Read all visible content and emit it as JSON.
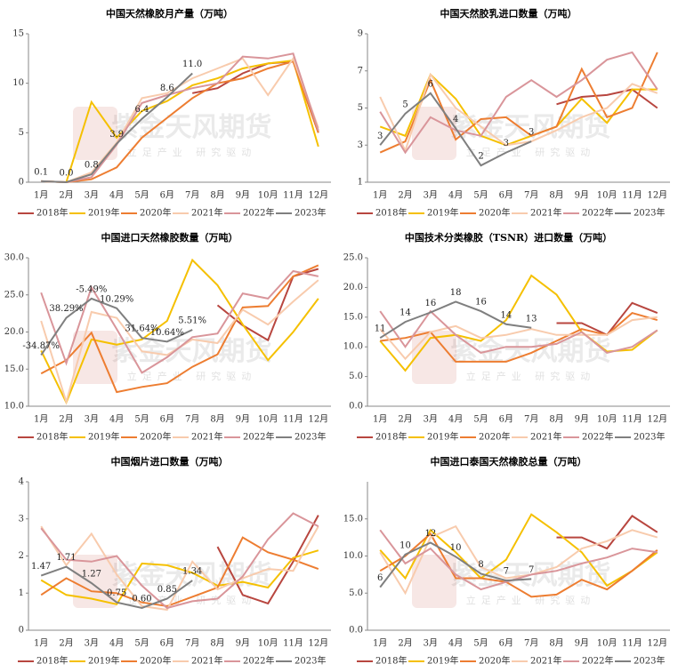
{
  "watermark": {
    "title": "紫金天风期货",
    "subtitle": "立足产业 研究驱动"
  },
  "chart_data": [
    {
      "type": "line",
      "title": "中国天然橡胶月产量（万吨）",
      "categories": [
        "1月",
        "2月",
        "3月",
        "4月",
        "5月",
        "6月",
        "7月",
        "8月",
        "9月",
        "10月",
        "11月",
        "12月"
      ],
      "ylim": [
        0,
        15
      ],
      "yticks": [
        0,
        5,
        10,
        15
      ],
      "series": [
        {
          "name": "2018年",
          "color": "#b8463f",
          "values": [
            null,
            null,
            null,
            null,
            null,
            null,
            9.0,
            9.5,
            11.0,
            12.0,
            12.2,
            5.0
          ]
        },
        {
          "name": "2019年",
          "color": "#f5c000",
          "values": [
            0.1,
            0.0,
            8.1,
            4.5,
            7.2,
            8.2,
            9.8,
            10.5,
            11.5,
            12.0,
            12.3,
            3.6
          ]
        },
        {
          "name": "2020年",
          "color": "#ed7d31",
          "values": [
            0.1,
            0.0,
            0.3,
            1.5,
            4.5,
            6.5,
            8.5,
            10.0,
            10.5,
            11.5,
            12.2,
            5.0
          ]
        },
        {
          "name": "2021年",
          "color": "#f8cbad",
          "values": [
            0.1,
            0.0,
            1.0,
            4.0,
            8.5,
            9.0,
            10.5,
            11.5,
            12.5,
            8.8,
            12.5,
            5.5
          ]
        },
        {
          "name": "2022年",
          "color": "#d9959a",
          "values": [
            0.1,
            0.0,
            0.5,
            3.8,
            8.0,
            8.8,
            9.5,
            10.0,
            12.7,
            12.5,
            13.0,
            5.2
          ]
        },
        {
          "name": "2023年",
          "color": "#7f7f7f",
          "values": [
            0.1,
            0.0,
            0.8,
            3.9,
            6.4,
            8.6,
            11.0,
            null,
            null,
            null,
            null,
            null
          ],
          "value_labels": [
            "0.1",
            "0.0",
            "0.8",
            "3.9",
            "6.4",
            "8.6",
            "11.0",
            null,
            null,
            null,
            null,
            null
          ]
        }
      ]
    },
    {
      "type": "line",
      "title": "中国天然胶乳进口数量（万吨）",
      "categories": [
        "1月",
        "2月",
        "3月",
        "4月",
        "5月",
        "6月",
        "7月",
        "8月",
        "9月",
        "10月",
        "11月",
        "12月"
      ],
      "ylim": [
        1,
        9
      ],
      "yticks": [
        1,
        3,
        5,
        7,
        9
      ],
      "series": [
        {
          "name": "2018年",
          "color": "#b8463f",
          "values": [
            null,
            null,
            null,
            null,
            null,
            null,
            null,
            5.2,
            5.6,
            5.7,
            6.0,
            5.0
          ]
        },
        {
          "name": "2019年",
          "color": "#f5c000",
          "values": [
            4.0,
            3.5,
            6.8,
            5.5,
            3.5,
            3.0,
            3.5,
            4.0,
            5.5,
            4.2,
            6.0,
            6.0
          ]
        },
        {
          "name": "2020年",
          "color": "#ed7d31",
          "values": [
            2.6,
            3.2,
            6.5,
            3.3,
            4.4,
            4.5,
            3.5,
            4.0,
            7.1,
            4.5,
            5.0,
            8.0
          ]
        },
        {
          "name": "2021年",
          "color": "#f8cbad",
          "values": [
            5.6,
            2.7,
            6.8,
            5.0,
            4.0,
            3.0,
            3.2,
            3.8,
            4.5,
            5.0,
            6.3,
            5.8
          ]
        },
        {
          "name": "2022年",
          "color": "#d9959a",
          "values": [
            4.8,
            2.6,
            4.5,
            3.8,
            3.5,
            5.6,
            6.5,
            5.6,
            6.5,
            7.6,
            8.0,
            6.0
          ]
        },
        {
          "name": "2023年",
          "color": "#7f7f7f",
          "values": [
            3.0,
            4.7,
            5.8,
            3.9,
            1.9,
            2.6,
            3.2,
            null,
            null,
            null,
            null,
            null
          ],
          "value_labels": [
            "3",
            "5",
            "6",
            "4",
            "2",
            "3",
            "3",
            null,
            null,
            null,
            null,
            null
          ]
        }
      ]
    },
    {
      "type": "line",
      "title": "中国进口天然橡胶数量（万吨）",
      "categories": [
        "1月",
        "2月",
        "3月",
        "4月",
        "5月",
        "6月",
        "7月",
        "8月",
        "9月",
        "10月",
        "11月",
        "12月"
      ],
      "ylim": [
        10,
        30
      ],
      "yticks": [
        {
          "value": 10,
          "label": "10.0"
        },
        {
          "value": 15,
          "label": "15.0"
        },
        {
          "value": 20,
          "label": "20.0"
        },
        {
          "value": 25,
          "label": "25.0"
        },
        {
          "value": 30,
          "label": "30.0"
        }
      ],
      "annotations": [
        "-34.87%",
        "38.29%",
        "-5.49%",
        "10.29%",
        "31.64%",
        "10.64%",
        "5.51%"
      ],
      "series": [
        {
          "name": "2018年",
          "color": "#b8463f",
          "values": [
            null,
            null,
            null,
            null,
            null,
            null,
            null,
            23.6,
            20.9,
            18.9,
            27.5,
            28.5
          ]
        },
        {
          "name": "2019年",
          "color": "#f5c000",
          "values": [
            17.5,
            10.5,
            19.0,
            18.3,
            19.0,
            21.5,
            29.7,
            26.3,
            21.0,
            16.2,
            20.0,
            24.5
          ]
        },
        {
          "name": "2020年",
          "color": "#ed7d31",
          "values": [
            14.4,
            16.2,
            19.9,
            11.9,
            12.6,
            13.1,
            15.3,
            17.0,
            23.3,
            23.5,
            27.5,
            29.0
          ]
        },
        {
          "name": "2021年",
          "color": "#f8cbad",
          "values": [
            21.5,
            10.6,
            22.7,
            21.9,
            17.4,
            16.9,
            19.0,
            18.5,
            23.0,
            21.0,
            24.1,
            27.0
          ]
        },
        {
          "name": "2022年",
          "color": "#d9959a",
          "values": [
            25.3,
            15.8,
            26.0,
            20.4,
            14.5,
            16.6,
            19.3,
            19.8,
            25.2,
            24.5,
            28.2,
            27.5
          ]
        },
        {
          "name": "2023年",
          "color": "#7f7f7f",
          "values": [
            16.9,
            21.9,
            24.5,
            23.2,
            19.2,
            18.7,
            20.3,
            null,
            null,
            null,
            null,
            null
          ]
        }
      ]
    },
    {
      "type": "line",
      "title": "中国技术分类橡胶（TSNR）进口数量（万吨）",
      "categories": [
        "1月",
        "2月",
        "3月",
        "4月",
        "5月",
        "6月",
        "7月",
        "8月",
        "9月",
        "10月",
        "11月",
        "12月"
      ],
      "ylim": [
        0,
        25
      ],
      "yticks": [
        {
          "value": 0,
          "label": "0.0"
        },
        {
          "value": 5,
          "label": "5.0"
        },
        {
          "value": 10,
          "label": "10.0"
        },
        {
          "value": 15,
          "label": "15.0"
        },
        {
          "value": 20,
          "label": "20.0"
        },
        {
          "value": 25,
          "label": "25.0"
        }
      ],
      "series": [
        {
          "name": "2018年",
          "color": "#b8463f",
          "values": [
            null,
            null,
            null,
            null,
            null,
            null,
            null,
            14.0,
            14.0,
            12.0,
            17.4,
            15.7
          ]
        },
        {
          "name": "2019年",
          "color": "#f5c000",
          "values": [
            11.0,
            6.0,
            11.5,
            12.0,
            11.0,
            14.5,
            22.0,
            18.8,
            12.5,
            9.2,
            9.5,
            12.8
          ]
        },
        {
          "name": "2020年",
          "color": "#ed7d31",
          "values": [
            11.0,
            11.5,
            12.5,
            7.5,
            7.5,
            7.5,
            9.0,
            11.0,
            13.0,
            12.0,
            15.7,
            14.5
          ]
        },
        {
          "name": "2021年",
          "color": "#f8cbad",
          "values": [
            13.0,
            8.0,
            12.5,
            13.5,
            11.5,
            12.0,
            13.0,
            12.0,
            12.0,
            12.0,
            14.5,
            15.0
          ]
        },
        {
          "name": "2022年",
          "color": "#d9959a",
          "values": [
            16.0,
            10.0,
            16.0,
            12.0,
            9.0,
            10.0,
            10.0,
            10.5,
            12.5,
            9.0,
            10.0,
            12.8
          ]
        },
        {
          "name": "2023年",
          "color": "#7f7f7f",
          "values": [
            11.5,
            14.2,
            15.8,
            17.6,
            16.0,
            13.8,
            13.2,
            null,
            null,
            null,
            null,
            null
          ],
          "value_labels": [
            "11",
            "14",
            "16",
            "18",
            "16",
            "14",
            "13",
            null,
            null,
            null,
            null,
            null
          ]
        }
      ]
    },
    {
      "type": "line",
      "title": "中国烟片进口数量（万吨）",
      "categories": [
        "1月",
        "2月",
        "3月",
        "4月",
        "5月",
        "6月",
        "7月",
        "8月",
        "9月",
        "10月",
        "11月",
        "12月"
      ],
      "ylim": [
        0,
        4
      ],
      "yticks": [
        0,
        1,
        2,
        3,
        4
      ],
      "series": [
        {
          "name": "2018年",
          "color": "#b8463f",
          "values": [
            null,
            null,
            null,
            null,
            null,
            null,
            null,
            2.25,
            0.95,
            0.72,
            1.85,
            3.1
          ]
        },
        {
          "name": "2019年",
          "color": "#f5c000",
          "values": [
            1.35,
            0.95,
            0.85,
            0.7,
            1.8,
            1.75,
            1.55,
            1.2,
            1.3,
            1.15,
            1.95,
            2.15
          ]
        },
        {
          "name": "2020年",
          "color": "#ed7d31",
          "values": [
            0.95,
            1.4,
            1.05,
            1.0,
            0.75,
            0.65,
            0.9,
            1.15,
            2.5,
            2.1,
            1.9,
            1.65
          ]
        },
        {
          "name": "2021年",
          "color": "#f8cbad",
          "values": [
            2.8,
            1.75,
            2.6,
            1.5,
            0.65,
            0.55,
            1.85,
            1.1,
            1.4,
            1.65,
            1.6,
            2.8
          ]
        },
        {
          "name": "2022年",
          "color": "#d9959a",
          "values": [
            2.75,
            1.9,
            1.85,
            2.0,
            1.2,
            0.6,
            0.78,
            0.85,
            1.45,
            2.45,
            3.15,
            2.8
          ]
        },
        {
          "name": "2023年",
          "color": "#7f7f7f",
          "values": [
            1.47,
            1.71,
            1.27,
            0.75,
            0.6,
            0.85,
            1.34,
            null,
            null,
            null,
            null,
            null
          ],
          "value_labels": [
            "1.47",
            "1.71",
            "1.27",
            "0.75",
            "0.60",
            "0.85",
            "1.34",
            null,
            null,
            null,
            null,
            null
          ]
        }
      ]
    },
    {
      "type": "line",
      "title": "中国进口泰国天然橡胶总量（万吨）",
      "categories": [
        "1月",
        "2月",
        "3月",
        "4月",
        "5月",
        "6月",
        "7月",
        "8月",
        "9月",
        "10月",
        "11月",
        "12月"
      ],
      "ylim": [
        0,
        20
      ],
      "yticks": [
        {
          "value": 0,
          "label": "0.0"
        },
        {
          "value": 5,
          "label": "5.0"
        },
        {
          "value": 10,
          "label": "10.0"
        },
        {
          "value": 15,
          "label": "15.0"
        }
      ],
      "series": [
        {
          "name": "2018年",
          "color": "#b8463f",
          "values": [
            null,
            null,
            null,
            null,
            null,
            null,
            null,
            12.5,
            12.5,
            11.0,
            15.4,
            13.2
          ]
        },
        {
          "name": "2019年",
          "color": "#f5c000",
          "values": [
            10.8,
            7.0,
            13.5,
            10.5,
            7.0,
            9.5,
            15.6,
            13.2,
            10.5,
            6.0,
            8.0,
            10.5
          ]
        },
        {
          "name": "2020年",
          "color": "#ed7d31",
          "values": [
            8.0,
            10.0,
            13.0,
            7.0,
            7.0,
            6.5,
            4.5,
            4.8,
            6.8,
            5.5,
            8.0,
            10.8
          ]
        },
        {
          "name": "2021年",
          "color": "#f8cbad",
          "values": [
            10.5,
            5.0,
            12.5,
            14.0,
            8.5,
            7.0,
            7.5,
            8.5,
            11.0,
            12.0,
            13.5,
            12.5
          ]
        },
        {
          "name": "2022年",
          "color": "#d9959a",
          "values": [
            13.5,
            9.0,
            11.0,
            7.5,
            5.5,
            6.5,
            7.5,
            8.0,
            9.0,
            9.8,
            11.0,
            10.5
          ]
        },
        {
          "name": "2023年",
          "color": "#7f7f7f",
          "values": [
            5.8,
            10.2,
            11.8,
            9.9,
            7.6,
            6.7,
            6.9,
            null,
            null,
            null,
            null,
            null
          ],
          "value_labels": [
            "6",
            "10",
            "12",
            "10",
            "8",
            "7",
            "7",
            null,
            null,
            null,
            null,
            null
          ]
        }
      ]
    }
  ]
}
